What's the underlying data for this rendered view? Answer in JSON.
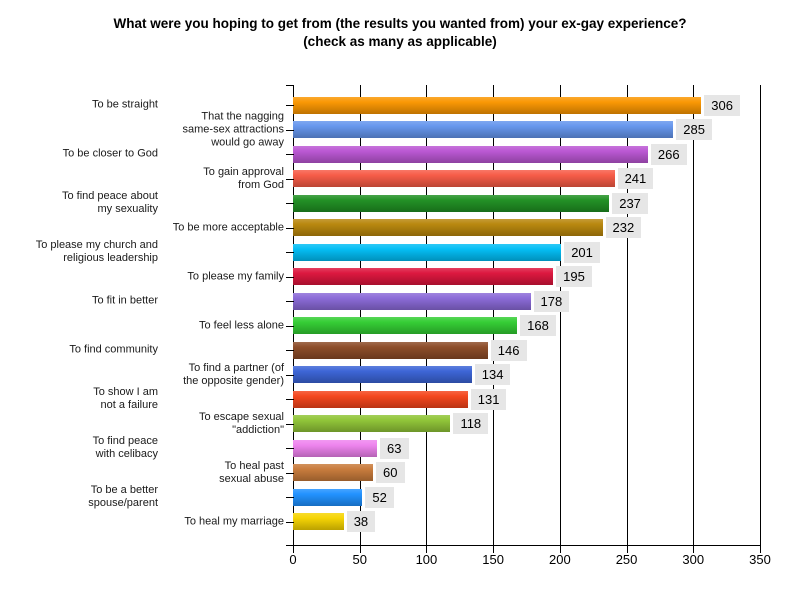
{
  "title": {
    "line1": "What were you hoping to get from (the results you wanted from) your ex-gay experience?",
    "line2": "(check as many as applicable)"
  },
  "chart_data": {
    "type": "bar",
    "orientation": "horizontal",
    "title": "What were you hoping to get from (the results you wanted from) your ex-gay experience? (check as many as applicable)",
    "xlabel": "",
    "ylabel": "",
    "xlim": [
      0,
      350
    ],
    "x_ticks": [
      0,
      50,
      100,
      150,
      200,
      250,
      300,
      350
    ],
    "grid": true,
    "value_label_bg": "#e6e6e6",
    "axis_color": "#000000",
    "rows": [
      {
        "label": "To be straight",
        "value": 306,
        "color": "#FA9600",
        "label_column": "outer"
      },
      {
        "label": "That the nagging\nsame-sex attractions\nwould go away",
        "value": 285,
        "color": "#6495ED",
        "label_column": "inner"
      },
      {
        "label": "To be closer to God",
        "value": 266,
        "color": "#BA55D3",
        "label_column": "outer"
      },
      {
        "label": "To gain approval\nfrom God",
        "value": 241,
        "color": "#F75A45",
        "label_column": "inner"
      },
      {
        "label": "To find peace about\nmy sexuality",
        "value": 237,
        "color": "#1F8F22",
        "label_column": "outer"
      },
      {
        "label": "To be more acceptable",
        "value": 232,
        "color": "#B8860B",
        "label_column": "inner"
      },
      {
        "label": "To please my church and\nreligious leadership",
        "value": 201,
        "color": "#00BDF5",
        "label_column": "outer"
      },
      {
        "label": "To please my family",
        "value": 195,
        "color": "#DC143C",
        "label_column": "inner"
      },
      {
        "label": "To fit in better",
        "value": 178,
        "color": "#8A69D8",
        "label_column": "outer"
      },
      {
        "label": "To feel less alone",
        "value": 168,
        "color": "#32CD32",
        "label_column": "inner"
      },
      {
        "label": "To find community",
        "value": 146,
        "color": "#8B4A26",
        "label_column": "outer"
      },
      {
        "label": "To find a partner (of\nthe opposite gender)",
        "value": 134,
        "color": "#3A63D6",
        "label_column": "inner"
      },
      {
        "label": "To show I am\nnot a failure",
        "value": 131,
        "color": "#F4441A",
        "label_column": "outer"
      },
      {
        "label": "To escape sexual\n\"addiction\"",
        "value": 118,
        "color": "#8FC436",
        "label_column": "inner"
      },
      {
        "label": "To find peace\nwith celibacy",
        "value": 63,
        "color": "#EE82EE",
        "label_column": "outer"
      },
      {
        "label": "To heal past\nsexual abuse",
        "value": 60,
        "color": "#C87A3A",
        "label_column": "inner"
      },
      {
        "label": "To be a better\nspouse/parent",
        "value": 52,
        "color": "#1E90FF",
        "label_column": "outer"
      },
      {
        "label": "To heal my marriage",
        "value": 38,
        "color": "#F6D400",
        "label_column": "inner"
      }
    ]
  }
}
